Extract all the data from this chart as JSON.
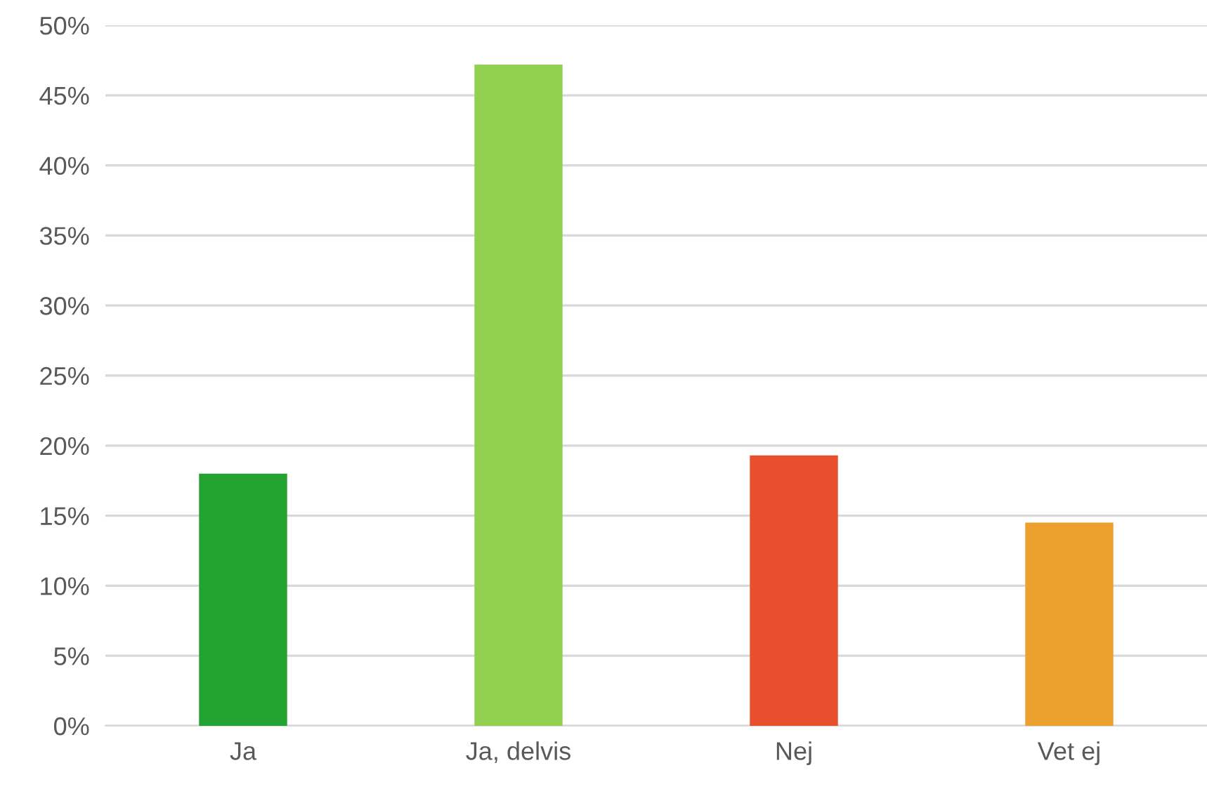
{
  "chart_data": {
    "type": "bar",
    "categories": [
      "Ja",
      "Ja, delvis",
      "Nej",
      "Vet ej"
    ],
    "values": [
      18.0,
      47.2,
      19.3,
      14.5
    ],
    "colors": [
      "#21a231",
      "#92d050",
      "#e8502d",
      "#eca02e"
    ],
    "ylim": [
      0,
      50
    ],
    "yticks": [
      {
        "value": 0,
        "label": "0%"
      },
      {
        "value": 5,
        "label": "5%"
      },
      {
        "value": 10,
        "label": "10%"
      },
      {
        "value": 15,
        "label": "15%"
      },
      {
        "value": 20,
        "label": "20%"
      },
      {
        "value": 25,
        "label": "25%"
      },
      {
        "value": 30,
        "label": "30%"
      },
      {
        "value": 35,
        "label": "35%"
      },
      {
        "value": 40,
        "label": "40%"
      },
      {
        "value": 45,
        "label": "45%"
      },
      {
        "value": 50,
        "label": "50%"
      }
    ],
    "grid": "y",
    "legend": false
  }
}
